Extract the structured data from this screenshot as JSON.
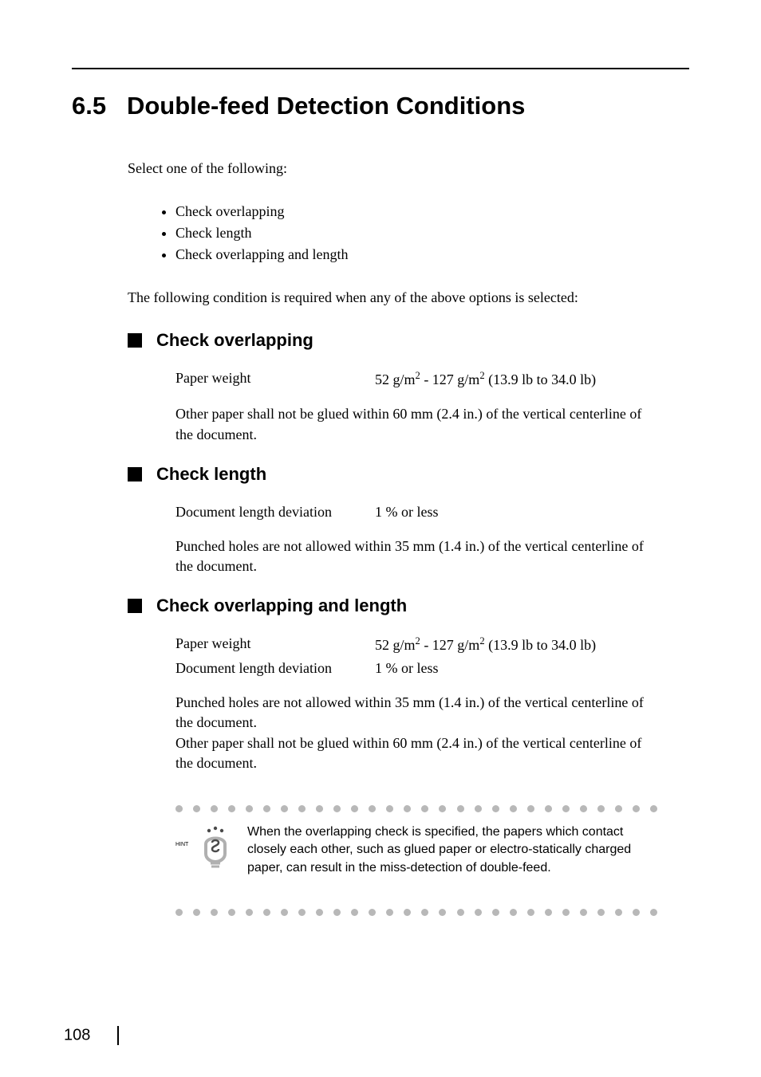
{
  "section_number": "6.5",
  "section_title": "Double-feed Detection Conditions",
  "intro": "Select one of the following:",
  "bullets": [
    "Check overlapping",
    "Check length",
    "Check overlapping and length"
  ],
  "intro2": "The following condition is required when any of the above options is selected:",
  "sub1": {
    "heading": "Check overlapping",
    "spec_label": "Paper weight",
    "spec_value_prefix": "52 g/m",
    "spec_value_mid": " - 127 g/m",
    "spec_value_suffix": " (13.9 lb to 34.0 lb)",
    "note": "Other paper shall not be glued within 60 mm (2.4 in.) of the vertical centerline of the document."
  },
  "sub2": {
    "heading": "Check length",
    "spec_label": "Document length deviation",
    "spec_value": "1 % or less",
    "note": "Punched holes are not allowed within 35 mm (1.4 in.) of the vertical centerline of the document."
  },
  "sub3": {
    "heading": "Check overlapping and length",
    "spec1_label": "Paper weight",
    "spec1_value_prefix": "52 g/m",
    "spec1_value_mid": " - 127 g/m",
    "spec1_value_suffix": " (13.9 lb to 34.0 lb)",
    "spec2_label": "Document length deviation",
    "spec2_value": "1 % or less",
    "note1": "Punched holes are not allowed within 35 mm (1.4 in.) of the vertical centerline of the document.",
    "note2": "Other paper shall not be glued within 60 mm (2.4 in.) of the vertical centerline of the document."
  },
  "hint_label": "HINT",
  "hint_text": "When the overlapping check is specified, the papers which contact closely each other, such as glued paper or electro-statically charged paper, can result in the miss-detection of double-feed.",
  "page_number": "108",
  "dot_count": 28,
  "colors": {
    "text": "#000000",
    "dot": "#b8b8b8",
    "icon_gray": "#b0b0b0",
    "icon_dark": "#4a4a4a",
    "background": "#ffffff"
  }
}
